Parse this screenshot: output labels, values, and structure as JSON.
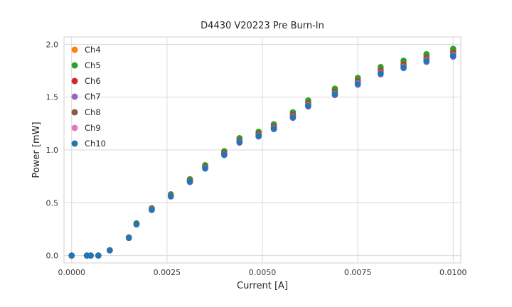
{
  "chart_data": {
    "type": "scatter",
    "title": "D4430 V20223 Pre Burn-In",
    "xlabel": "Current [A]",
    "ylabel": "Power [mW]",
    "grid": true,
    "legend_position": "upper left",
    "xlim": [
      -0.0002,
      0.0102
    ],
    "ylim": [
      -0.07,
      2.07
    ],
    "x_tick_values": [
      0.0,
      0.0025,
      0.005,
      0.0075,
      0.01
    ],
    "x_tick_labels": [
      "0.0000",
      "0.0025",
      "0.0050",
      "0.0075",
      "0.0100"
    ],
    "y_tick_values": [
      0.0,
      0.5,
      1.0,
      1.5,
      2.0
    ],
    "y_tick_labels": [
      "0.0",
      "0.5",
      "1.0",
      "1.5",
      "2.0"
    ],
    "marker": "circle",
    "grid_color": "#d9d9d9",
    "x": [
      0.0,
      0.0004,
      0.0005,
      0.0007,
      0.001,
      0.0015,
      0.0017,
      0.0021,
      0.0026,
      0.0031,
      0.0035,
      0.004,
      0.0044,
      0.0049,
      0.0053,
      0.0058,
      0.0062,
      0.0069,
      0.0075,
      0.0081,
      0.0087,
      0.0093,
      0.01
    ],
    "series": [
      {
        "name": "Ch4",
        "color": "#ff7f0e",
        "values": [
          0,
          0,
          0,
          0,
          0.051,
          0.172,
          0.303,
          0.444,
          0.576,
          0.717,
          0.848,
          0.98,
          1.101,
          1.162,
          1.232,
          1.343,
          1.454,
          1.566,
          1.667,
          1.768,
          1.828,
          1.889,
          1.939
        ]
      },
      {
        "name": "Ch5",
        "color": "#2ca02c",
        "values": [
          0,
          0,
          0,
          0,
          0.051,
          0.173,
          0.306,
          0.449,
          0.581,
          0.724,
          0.857,
          0.989,
          1.112,
          1.173,
          1.244,
          1.357,
          1.469,
          1.581,
          1.683,
          1.785,
          1.846,
          1.907,
          1.958
        ]
      },
      {
        "name": "Ch6",
        "color": "#d62728",
        "values": [
          0,
          0,
          0,
          0,
          0.05,
          0.17,
          0.3,
          0.44,
          0.57,
          0.71,
          0.84,
          0.97,
          1.09,
          1.15,
          1.22,
          1.33,
          1.44,
          1.55,
          1.65,
          1.75,
          1.81,
          1.87,
          1.92
        ]
      },
      {
        "name": "Ch7",
        "color": "#9467bd",
        "values": [
          0,
          0,
          0,
          0,
          0.049,
          0.167,
          0.294,
          0.431,
          0.559,
          0.696,
          0.823,
          0.951,
          1.068,
          1.127,
          1.196,
          1.303,
          1.411,
          1.519,
          1.617,
          1.715,
          1.774,
          1.833,
          1.882
        ]
      },
      {
        "name": "Ch8",
        "color": "#8c564b",
        "values": [
          0,
          0,
          0,
          0,
          0.05,
          0.169,
          0.299,
          0.438,
          0.567,
          0.706,
          0.836,
          0.965,
          1.085,
          1.144,
          1.214,
          1.323,
          1.433,
          1.542,
          1.642,
          1.741,
          1.801,
          1.861,
          1.91
        ]
      },
      {
        "name": "Ch9",
        "color": "#e377c2",
        "values": [
          0,
          0,
          0,
          0,
          0.049,
          0.168,
          0.296,
          0.435,
          0.563,
          0.701,
          0.83,
          0.958,
          1.077,
          1.136,
          1.205,
          1.314,
          1.423,
          1.531,
          1.63,
          1.729,
          1.788,
          1.848,
          1.897
        ]
      },
      {
        "name": "Ch10",
        "color": "#1f77b4",
        "values": [
          0,
          0,
          0,
          0,
          0.049,
          0.167,
          0.296,
          0.433,
          0.561,
          0.699,
          0.827,
          0.955,
          1.074,
          1.133,
          1.202,
          1.31,
          1.418,
          1.527,
          1.625,
          1.724,
          1.783,
          1.842,
          1.891
        ]
      }
    ]
  }
}
